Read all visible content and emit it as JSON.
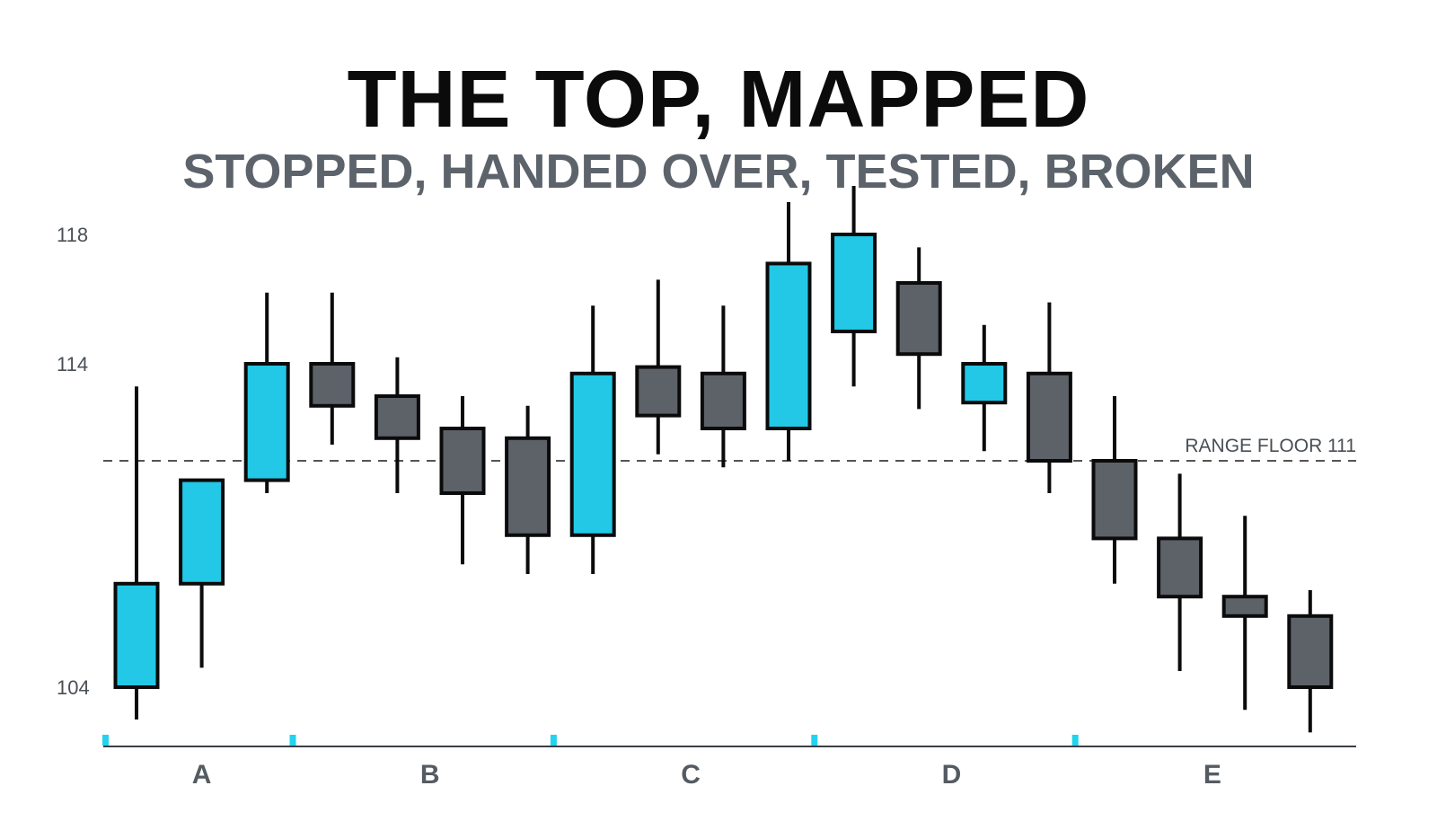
{
  "title": "THE TOP, MAPPED",
  "subtitle": "STOPPED, HANDED OVER, TESTED, BROKEN",
  "chart_data": {
    "type": "candlestick",
    "title": "THE TOP, MAPPED",
    "subtitle": "STOPPED, HANDED OVER, TESTED, BROKEN",
    "y_ticks": [
      104,
      114,
      118
    ],
    "ylim": [
      102.5,
      121
    ],
    "sections": [
      "A",
      "B",
      "C",
      "D",
      "E"
    ],
    "section_candle_ranges": [
      [
        0,
        2
      ],
      [
        3,
        6
      ],
      [
        7,
        10
      ],
      [
        11,
        14
      ],
      [
        15,
        18
      ]
    ],
    "reference_line": {
      "value": 111,
      "label": "RANGE FLOOR 111",
      "style": "dashed"
    },
    "colors": {
      "bullish": "#22c8e6",
      "bearish": "#5d6168",
      "outline": "#0b0b0b",
      "tick_marker": "#22d3ee",
      "reference": "#555555"
    },
    "candles": [
      {
        "open": 104.0,
        "high": 113.3,
        "low": 103.0,
        "close": 107.2
      },
      {
        "open": 107.2,
        "high": 110.4,
        "low": 104.6,
        "close": 110.4
      },
      {
        "open": 110.4,
        "high": 116.2,
        "low": 110.0,
        "close": 114.0
      },
      {
        "open": 114.0,
        "high": 116.2,
        "low": 111.5,
        "close": 112.7
      },
      {
        "open": 113.0,
        "high": 114.2,
        "low": 110.0,
        "close": 111.7
      },
      {
        "open": 112.0,
        "high": 113.0,
        "low": 107.8,
        "close": 110.0
      },
      {
        "open": 111.7,
        "high": 112.7,
        "low": 107.5,
        "close": 108.7
      },
      {
        "open": 108.7,
        "high": 115.8,
        "low": 107.5,
        "close": 113.7
      },
      {
        "open": 113.9,
        "high": 116.6,
        "low": 111.2,
        "close": 112.4
      },
      {
        "open": 113.7,
        "high": 115.8,
        "low": 110.8,
        "close": 112.0
      },
      {
        "open": 112.0,
        "high": 119.0,
        "low": 111.0,
        "close": 117.1
      },
      {
        "open": 115.0,
        "high": 119.5,
        "low": 113.3,
        "close": 118.0
      },
      {
        "open": 116.5,
        "high": 117.6,
        "low": 112.6,
        "close": 114.3
      },
      {
        "open": 112.8,
        "high": 115.2,
        "low": 111.3,
        "close": 114.0
      },
      {
        "open": 113.7,
        "high": 115.9,
        "low": 110.0,
        "close": 111.0
      },
      {
        "open": 111.0,
        "high": 113.0,
        "low": 107.2,
        "close": 108.6
      },
      {
        "open": 108.6,
        "high": 110.6,
        "low": 104.5,
        "close": 106.8
      },
      {
        "open": 106.8,
        "high": 109.3,
        "low": 103.3,
        "close": 106.2
      },
      {
        "open": 106.2,
        "high": 107.0,
        "low": 102.6,
        "close": 104.0
      }
    ]
  }
}
